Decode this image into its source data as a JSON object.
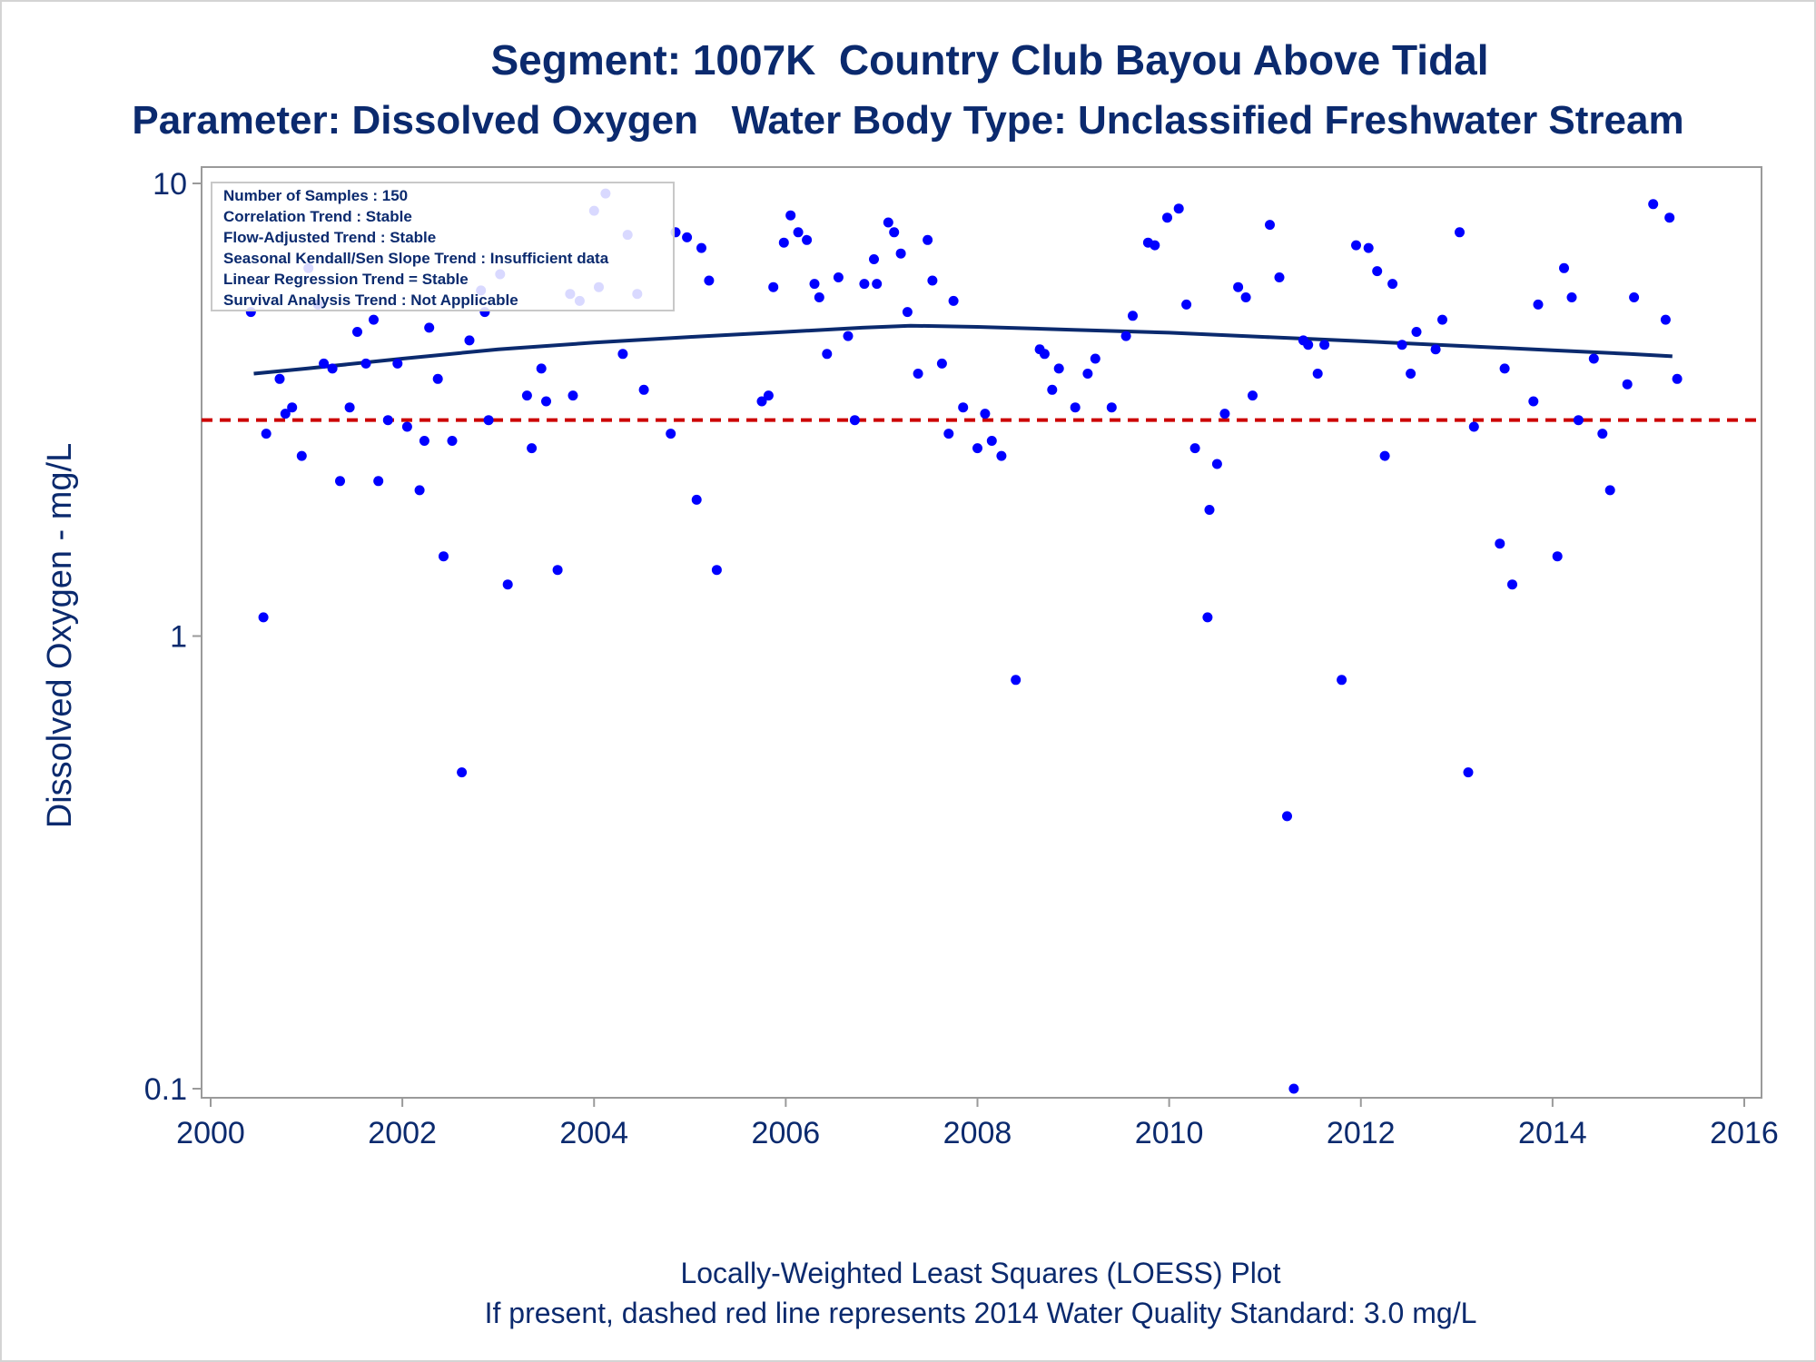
{
  "chart_data": {
    "type": "scatter",
    "title": "Segment: 1007K  Country Club Bayou Above Tidal",
    "subtitle": "Parameter: Dissolved Oxygen   Water Body Type: Unclassified Freshwater Stream",
    "xlabel": "",
    "ylabel": "Dissolved Oxygen - mg/L",
    "xlim": [
      2000,
      2016
    ],
    "ylim": [
      0.1,
      10
    ],
    "y_scale": "log",
    "x_ticks": [
      "2000",
      "2002",
      "2004",
      "2006",
      "2008",
      "2010",
      "2012",
      "2014",
      "2016"
    ],
    "y_ticks": [
      "0.1",
      "1",
      "10"
    ],
    "grid": false,
    "legend_position": "top-left",
    "legend_lines": [
      "Number of Samples : 150",
      "Correlation Trend : Stable",
      "Flow-Adjusted Trend : Stable",
      "Seasonal Kendall/Sen Slope Trend : Insufficient data",
      "Linear Regression Trend = Stable",
      "Survival Analysis Trend : Not Applicable"
    ],
    "standard_value": 3.0,
    "footnotes": [
      "Locally-Weighted Least Squares (LOESS) Plot",
      "If present, dashed red line represents 2014 Water Quality Standard: 3.0 mg/L"
    ],
    "colors": {
      "points": "#0000ff",
      "loess": "#0b2a6e",
      "standard": "#cc0000",
      "text": "#0b2a6e"
    },
    "loess": {
      "x": [
        2000.45,
        2001.0,
        2002.0,
        2003.0,
        2004.0,
        2005.0,
        2006.0,
        2006.8,
        2007.3,
        2008.0,
        2009.0,
        2010.0,
        2011.0,
        2012.0,
        2013.0,
        2014.0,
        2014.8,
        2015.25
      ],
      "y": [
        3.8,
        3.9,
        4.1,
        4.3,
        4.45,
        4.58,
        4.7,
        4.8,
        4.85,
        4.82,
        4.75,
        4.68,
        4.58,
        4.48,
        4.38,
        4.28,
        4.2,
        4.15
      ]
    },
    "points": {
      "x": [
        2000.42,
        2000.55,
        2000.58,
        2000.72,
        2000.78,
        2000.85,
        2000.95,
        2001.02,
        2001.12,
        2001.18,
        2001.27,
        2001.35,
        2001.45,
        2001.53,
        2001.62,
        2001.7,
        2001.75,
        2001.85,
        2001.95,
        2002.05,
        2002.18,
        2002.23,
        2002.28,
        2002.37,
        2002.43,
        2002.52,
        2002.62,
        2002.7,
        2002.82,
        2002.86,
        2002.9,
        2003.02,
        2003.1,
        2003.3,
        2003.35,
        2003.45,
        2003.5,
        2003.62,
        2003.75,
        2003.78,
        2003.85,
        2004.0,
        2004.05,
        2004.12,
        2004.3,
        2004.35,
        2004.45,
        2004.52,
        2004.8,
        2004.85,
        2004.97,
        2005.07,
        2005.12,
        2005.2,
        2005.28,
        2005.75,
        2005.82,
        2005.87,
        2005.98,
        2006.05,
        2006.13,
        2006.22,
        2006.3,
        2006.35,
        2006.43,
        2006.55,
        2006.65,
        2006.72,
        2006.82,
        2006.92,
        2006.95,
        2007.07,
        2007.13,
        2007.2,
        2007.27,
        2007.38,
        2007.48,
        2007.53,
        2007.63,
        2007.7,
        2007.75,
        2007.85,
        2008.0,
        2008.08,
        2008.15,
        2008.25,
        2008.4,
        2008.65,
        2008.7,
        2008.78,
        2008.85,
        2009.02,
        2009.15,
        2009.23,
        2009.4,
        2009.55,
        2009.62,
        2009.78,
        2009.85,
        2009.98,
        2010.1,
        2010.18,
        2010.27,
        2010.4,
        2010.42,
        2010.5,
        2010.58,
        2010.72,
        2010.8,
        2010.87,
        2011.05,
        2011.15,
        2011.23,
        2011.3,
        2011.4,
        2011.45,
        2011.55,
        2011.62,
        2011.8,
        2011.95,
        2012.08,
        2012.17,
        2012.25,
        2012.33,
        2012.43,
        2012.52,
        2012.58,
        2012.78,
        2012.85,
        2013.03,
        2013.12,
        2013.18,
        2013.45,
        2013.5,
        2013.58,
        2013.8,
        2013.85,
        2014.05,
        2014.12,
        2014.2,
        2014.27,
        2014.43,
        2014.52,
        2014.6,
        2014.78,
        2014.85,
        2015.05,
        2015.18,
        2015.22,
        2015.3
      ],
      "y": [
        5.2,
        1.1,
        2.8,
        3.7,
        3.1,
        3.2,
        2.5,
        6.5,
        5.4,
        4.0,
        3.9,
        2.2,
        3.2,
        4.7,
        4.0,
        5.0,
        2.2,
        3.0,
        4.0,
        2.9,
        2.1,
        2.7,
        4.8,
        3.7,
        1.5,
        2.7,
        0.5,
        4.5,
        5.8,
        5.2,
        3.0,
        6.3,
        1.3,
        3.4,
        2.6,
        3.9,
        3.3,
        1.4,
        5.7,
        3.4,
        5.5,
        8.7,
        5.9,
        9.5,
        4.2,
        7.7,
        5.7,
        3.5,
        2.8,
        7.8,
        7.6,
        2.0,
        7.2,
        6.1,
        1.4,
        3.3,
        3.4,
        5.9,
        7.4,
        8.5,
        7.8,
        7.5,
        6.0,
        5.6,
        4.2,
        6.2,
        4.6,
        3.0,
        6.0,
        6.8,
        6.0,
        8.2,
        7.8,
        7.0,
        5.2,
        3.8,
        7.5,
        6.1,
        4.0,
        2.8,
        5.5,
        3.2,
        2.6,
        3.1,
        2.7,
        2.5,
        0.8,
        4.3,
        4.2,
        3.5,
        3.9,
        3.2,
        3.8,
        4.1,
        3.2,
        4.6,
        5.1,
        7.4,
        7.3,
        8.4,
        8.8,
        5.4,
        2.6,
        1.1,
        1.9,
        2.4,
        3.1,
        5.9,
        5.6,
        3.4,
        8.1,
        6.2,
        0.4,
        0.1,
        4.5,
        4.4,
        3.8,
        4.4,
        0.8,
        7.3,
        7.2,
        6.4,
        2.5,
        6.0,
        4.4,
        3.8,
        4.7,
        4.3,
        5.0,
        7.8,
        0.5,
        2.9,
        1.6,
        3.9,
        1.3,
        3.3,
        5.4,
        1.5,
        6.5,
        5.6,
        3.0,
        4.1,
        2.8,
        2.1,
        3.6,
        5.6,
        9.0,
        5.0,
        8.4,
        3.7
      ]
    }
  }
}
